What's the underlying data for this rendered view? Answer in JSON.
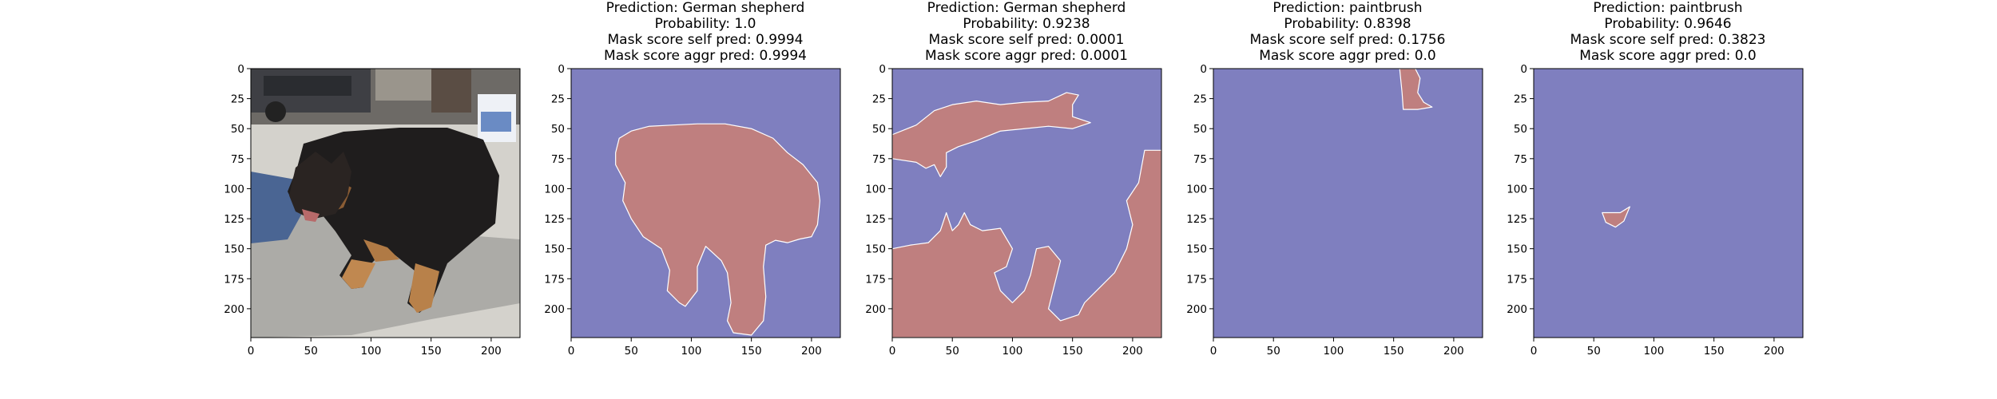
{
  "chart_data": [
    {
      "type": "image",
      "image": "photo of a dog lying on pavement",
      "title_lines": [],
      "x_ticks": [
        0,
        50,
        100,
        150,
        200
      ],
      "y_ticks": [
        0,
        25,
        50,
        75,
        100,
        125,
        150,
        175,
        200
      ],
      "xlim": [
        0,
        224
      ],
      "ylim": [
        224,
        0
      ]
    },
    {
      "type": "heatmap",
      "title_lines": [
        "Prediction: German shepherd",
        "Probability: 1.0",
        "Mask score self pred: 0.9994",
        "Mask score aggr pred: 0.9994"
      ],
      "x_ticks": [
        0,
        50,
        100,
        150,
        200
      ],
      "y_ticks": [
        0,
        25,
        50,
        75,
        100,
        125,
        150,
        175,
        200
      ],
      "xlim": [
        0,
        224
      ],
      "ylim": [
        224,
        0
      ],
      "background_color": "#7f7fbf",
      "mask_color": "#bf7f7f",
      "mask_regions": [
        [
          [
            37,
            70
          ],
          [
            40,
            58
          ],
          [
            50,
            52
          ],
          [
            65,
            48
          ],
          [
            85,
            47
          ],
          [
            105,
            46
          ],
          [
            128,
            46
          ],
          [
            150,
            50
          ],
          [
            168,
            58
          ],
          [
            180,
            70
          ],
          [
            193,
            80
          ],
          [
            205,
            95
          ],
          [
            207,
            110
          ],
          [
            205,
            130
          ],
          [
            200,
            140
          ],
          [
            190,
            142
          ],
          [
            180,
            145
          ],
          [
            170,
            143
          ],
          [
            162,
            147
          ],
          [
            160,
            165
          ],
          [
            162,
            190
          ],
          [
            160,
            210
          ],
          [
            150,
            222
          ],
          [
            135,
            220
          ],
          [
            130,
            210
          ],
          [
            133,
            195
          ],
          [
            130,
            170
          ],
          [
            125,
            160
          ],
          [
            112,
            148
          ],
          [
            105,
            165
          ],
          [
            105,
            185
          ],
          [
            95,
            198
          ],
          [
            90,
            195
          ],
          [
            80,
            185
          ],
          [
            82,
            168
          ],
          [
            75,
            150
          ],
          [
            60,
            140
          ],
          [
            50,
            125
          ],
          [
            43,
            110
          ],
          [
            45,
            95
          ],
          [
            37,
            80
          ]
        ]
      ]
    },
    {
      "type": "heatmap",
      "title_lines": [
        "Prediction: German shepherd",
        "Probability: 0.9238",
        "Mask score self pred: 0.0001",
        "Mask score aggr pred: 0.0001"
      ],
      "x_ticks": [
        0,
        50,
        100,
        150,
        200
      ],
      "y_ticks": [
        0,
        25,
        50,
        75,
        100,
        125,
        150,
        175,
        200
      ],
      "xlim": [
        0,
        224
      ],
      "ylim": [
        224,
        0
      ],
      "background_color": "#7f7fbf",
      "mask_color": "#bf7f7f",
      "mask_regions": [
        [
          [
            0,
            55
          ],
          [
            20,
            47
          ],
          [
            35,
            35
          ],
          [
            50,
            30
          ],
          [
            70,
            27
          ],
          [
            90,
            30
          ],
          [
            110,
            28
          ],
          [
            130,
            27
          ],
          [
            145,
            20
          ],
          [
            155,
            22
          ],
          [
            150,
            30
          ],
          [
            150,
            40
          ],
          [
            165,
            45
          ],
          [
            150,
            50
          ],
          [
            130,
            48
          ],
          [
            110,
            50
          ],
          [
            90,
            52
          ],
          [
            70,
            60
          ],
          [
            55,
            65
          ],
          [
            45,
            70
          ],
          [
            45,
            82
          ],
          [
            40,
            90
          ],
          [
            35,
            80
          ],
          [
            28,
            83
          ],
          [
            20,
            78
          ],
          [
            0,
            75
          ]
        ],
        [
          [
            0,
            150
          ],
          [
            15,
            147
          ],
          [
            30,
            145
          ],
          [
            40,
            135
          ],
          [
            45,
            120
          ],
          [
            50,
            135
          ],
          [
            55,
            130
          ],
          [
            60,
            120
          ],
          [
            65,
            130
          ],
          [
            75,
            135
          ],
          [
            90,
            133
          ],
          [
            100,
            150
          ],
          [
            95,
            165
          ],
          [
            85,
            170
          ],
          [
            90,
            185
          ],
          [
            100,
            195
          ],
          [
            110,
            185
          ],
          [
            115,
            172
          ],
          [
            120,
            150
          ],
          [
            130,
            148
          ],
          [
            140,
            160
          ],
          [
            135,
            180
          ],
          [
            130,
            200
          ],
          [
            140,
            210
          ],
          [
            155,
            205
          ],
          [
            160,
            195
          ],
          [
            170,
            185
          ],
          [
            185,
            170
          ],
          [
            195,
            150
          ],
          [
            200,
            130
          ],
          [
            195,
            110
          ],
          [
            205,
            95
          ],
          [
            210,
            68
          ],
          [
            224,
            68
          ],
          [
            224,
            224
          ],
          [
            0,
            224
          ]
        ]
      ]
    },
    {
      "type": "heatmap",
      "title_lines": [
        "Prediction: paintbrush",
        "Probability: 0.8398",
        "Mask score self pred: 0.1756",
        "Mask score aggr pred: 0.0"
      ],
      "x_ticks": [
        0,
        50,
        100,
        150,
        200
      ],
      "y_ticks": [
        0,
        25,
        50,
        75,
        100,
        125,
        150,
        175,
        200
      ],
      "xlim": [
        0,
        224
      ],
      "ylim": [
        224,
        0
      ],
      "background_color": "#7f7fbf",
      "mask_color": "#bf7f7f",
      "mask_regions": [
        [
          [
            155,
            0
          ],
          [
            168,
            0
          ],
          [
            172,
            8
          ],
          [
            170,
            20
          ],
          [
            175,
            28
          ],
          [
            182,
            32
          ],
          [
            170,
            34
          ],
          [
            158,
            34
          ],
          [
            157,
            20
          ]
        ]
      ]
    },
    {
      "type": "heatmap",
      "title_lines": [
        "Prediction: paintbrush",
        "Probability: 0.9646",
        "Mask score self pred: 0.3823",
        "Mask score aggr pred: 0.0"
      ],
      "x_ticks": [
        0,
        50,
        100,
        150,
        200
      ],
      "y_ticks": [
        0,
        25,
        50,
        75,
        100,
        125,
        150,
        175,
        200
      ],
      "xlim": [
        0,
        224
      ],
      "ylim": [
        224,
        0
      ],
      "background_color": "#7f7fbf",
      "mask_color": "#bf7f7f",
      "mask_regions": [
        [
          [
            57,
            120
          ],
          [
            72,
            120
          ],
          [
            80,
            115
          ],
          [
            75,
            127
          ],
          [
            68,
            132
          ],
          [
            60,
            128
          ]
        ]
      ]
    }
  ]
}
